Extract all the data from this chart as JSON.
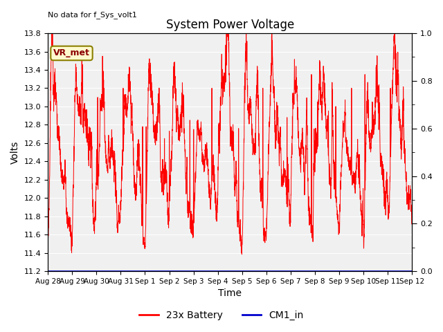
{
  "title": "System Power Voltage",
  "no_data_label": "No data for f_Sys_volt1",
  "ylabel_left": "Volts",
  "xlabel": "Time",
  "ylim_left": [
    11.2,
    13.8
  ],
  "ylim_right": [
    0.0,
    1.0
  ],
  "yticks_left": [
    11.2,
    11.4,
    11.6,
    11.8,
    12.0,
    12.2,
    12.4,
    12.6,
    12.8,
    13.0,
    13.2,
    13.4,
    13.6,
    13.8
  ],
  "yticks_right_major": [
    0.0,
    0.2,
    0.4,
    0.6,
    0.8,
    1.0
  ],
  "yticks_right_minor": [
    0.1,
    0.3,
    0.5,
    0.7,
    0.9
  ],
  "xtick_labels": [
    "Aug 28",
    "Aug 29",
    "Aug 30",
    "Aug 31",
    "Sep 1",
    "Sep 2",
    "Sep 3",
    "Sep 4",
    "Sep 5",
    "Sep 6",
    "Sep 7",
    "Sep 8",
    "Sep 9",
    "Sep 10",
    "Sep 11",
    "Sep 12"
  ],
  "battery_color": "#FF0000",
  "cm1_color": "#0000CD",
  "bg_color": "#DCDCDC",
  "plot_bg_color": "#F0F0F0",
  "legend_battery": "23x Battery",
  "legend_cm1": "CM1_in",
  "vr_met_label": "VR_met",
  "vr_met_bg": "#FFFACD",
  "vr_met_border": "#8B8000",
  "figsize": [
    6.4,
    4.8
  ],
  "dpi": 100
}
